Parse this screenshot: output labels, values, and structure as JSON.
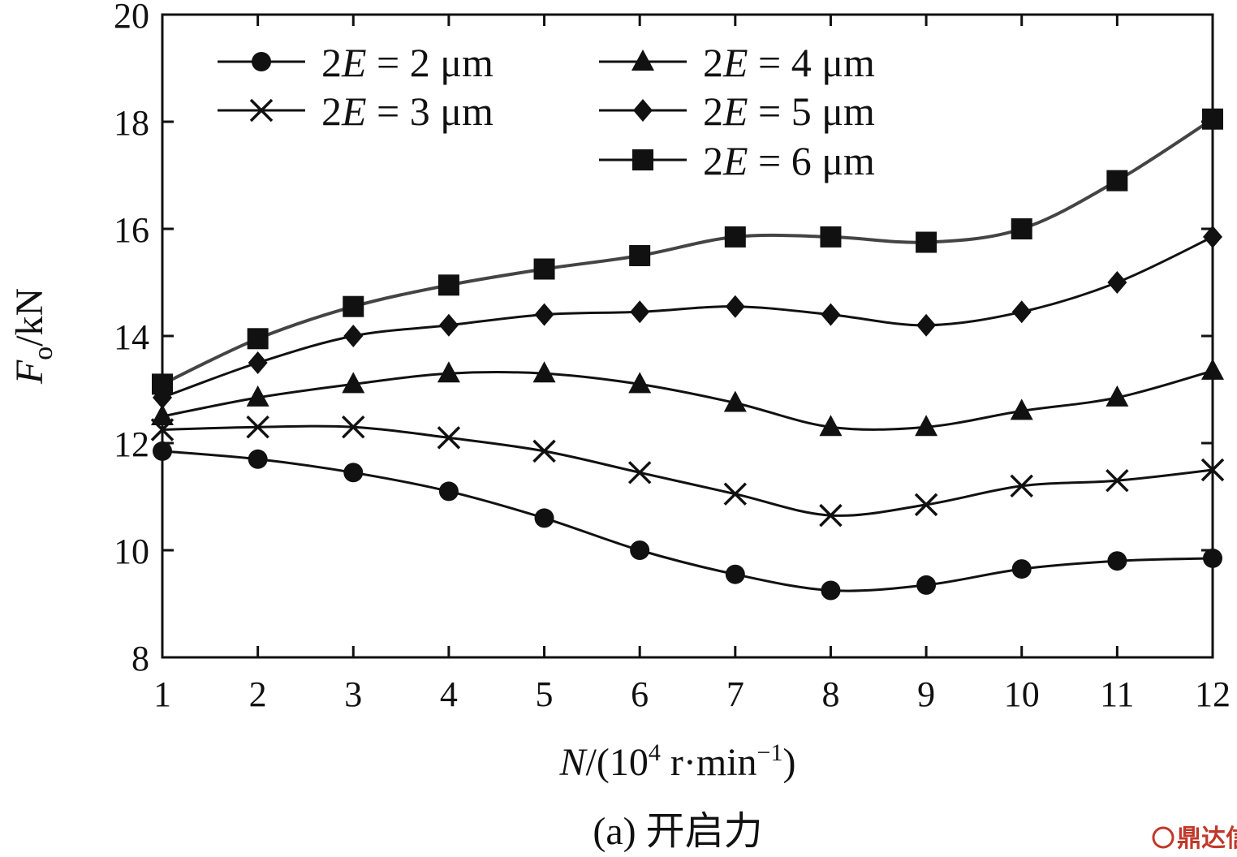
{
  "chart_data": {
    "type": "line",
    "x": [
      1,
      2,
      3,
      4,
      5,
      6,
      7,
      8,
      9,
      10,
      11,
      12
    ],
    "xticks": [
      "1",
      "2",
      "3",
      "4",
      "5",
      "6",
      "7",
      "8",
      "9",
      "10",
      "11",
      "12"
    ],
    "yticks": [
      "8",
      "10",
      "12",
      "14",
      "16",
      "18",
      "20"
    ],
    "xlim": [
      1,
      12
    ],
    "ylim": [
      8,
      20
    ],
    "xlabel": {
      "var": "N",
      "pre": "/(10",
      "sup1": "4",
      "mid": " r·min",
      "sup2": "−1",
      "post": ")"
    },
    "ylabel": {
      "var": "F",
      "sub": "o",
      "post": "/kN"
    },
    "caption": "(a) 开启力",
    "grid": false,
    "legend_position": "top",
    "series": [
      {
        "name": "2E = 2 μm",
        "marker": "circle",
        "values": [
          11.85,
          11.7,
          11.45,
          11.1,
          10.6,
          10.0,
          9.55,
          9.25,
          9.35,
          9.65,
          9.8,
          9.85
        ]
      },
      {
        "name": "2E = 3 μm",
        "marker": "x",
        "values": [
          12.25,
          12.3,
          12.3,
          12.1,
          11.85,
          11.45,
          11.05,
          10.65,
          10.85,
          11.2,
          11.3,
          11.5
        ]
      },
      {
        "name": "2E = 4 μm",
        "marker": "triangle",
        "values": [
          12.5,
          12.85,
          13.1,
          13.3,
          13.3,
          13.1,
          12.75,
          12.3,
          12.3,
          12.6,
          12.85,
          13.35
        ]
      },
      {
        "name": "2E = 5 μm",
        "marker": "diamond",
        "values": [
          12.85,
          13.5,
          14.0,
          14.2,
          14.4,
          14.45,
          14.55,
          14.4,
          14.2,
          14.45,
          15.0,
          15.85
        ]
      },
      {
        "name": "2E = 6 μm",
        "marker": "square",
        "values": [
          13.1,
          13.95,
          14.55,
          14.95,
          15.25,
          15.5,
          15.85,
          15.85,
          15.75,
          16.0,
          16.9,
          18.05
        ]
      }
    ]
  },
  "legend_parts": [
    {
      "pre": "2",
      "var": "E",
      "post": " = 2 μm"
    },
    {
      "pre": "2",
      "var": "E",
      "post": " = 3 μm"
    },
    {
      "pre": "2",
      "var": "E",
      "post": " = 4 μm"
    },
    {
      "pre": "2",
      "var": "E",
      "post": " = 5 μm"
    },
    {
      "pre": "2",
      "var": "E",
      "post": " = 6 μm"
    }
  ],
  "watermark": "鼎达信",
  "colors": {
    "line": "#111111",
    "line_6um": "#444444",
    "watermark": "#c0392b"
  }
}
